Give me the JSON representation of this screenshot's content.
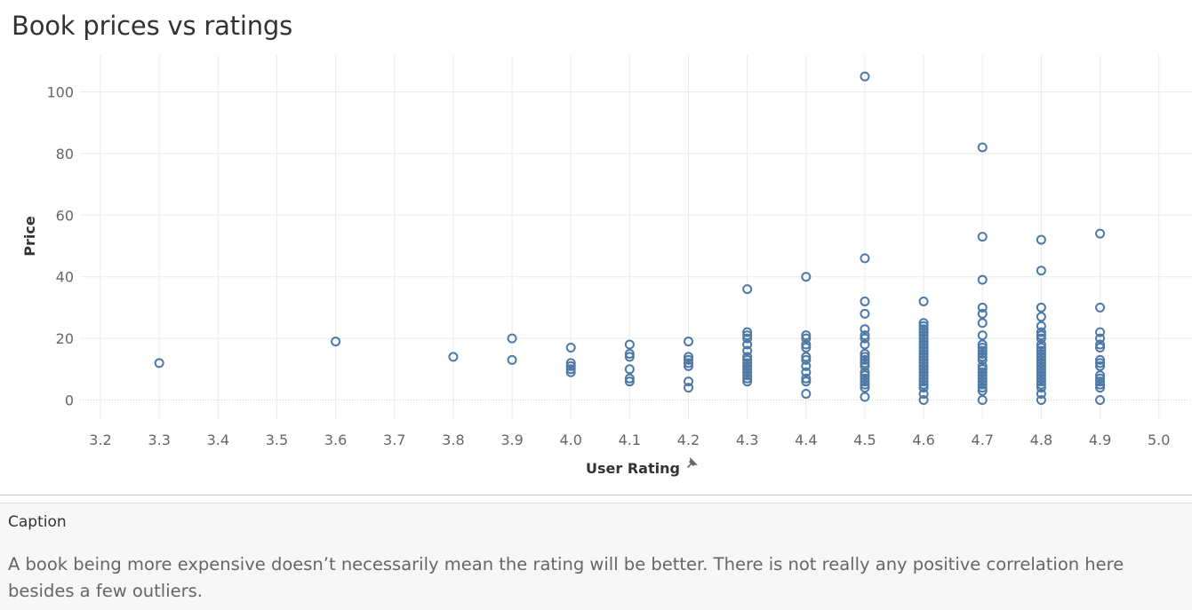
{
  "colors": {
    "point": "#4e79a7",
    "grid": "#ebebeb"
  },
  "caption": {
    "heading": "Caption",
    "text": "A book being more expensive doesn’t necessarily mean the rating will be better. There is not really any positive correlation here besides a few outliers."
  },
  "pin_icon": "pin-icon",
  "chart_data": {
    "type": "scatter",
    "title": "Book prices vs ratings",
    "xlabel": "User Rating",
    "ylabel": "Price",
    "xlim": [
      3.2,
      5.0
    ],
    "ylim": [
      0,
      100
    ],
    "xticks": [
      "3.2",
      "3.3",
      "3.4",
      "3.5",
      "3.6",
      "3.7",
      "3.8",
      "3.9",
      "4.0",
      "4.1",
      "4.2",
      "4.3",
      "4.4",
      "4.5",
      "4.6",
      "4.7",
      "4.8",
      "4.9",
      "5.0"
    ],
    "yticks": [
      "0",
      "20",
      "40",
      "60",
      "80",
      "100"
    ],
    "grid": true,
    "series": [
      {
        "points": [
          [
            3.3,
            12
          ],
          [
            3.6,
            19
          ],
          [
            3.8,
            14
          ],
          [
            3.9,
            20
          ],
          [
            3.9,
            13
          ],
          [
            4.0,
            17
          ],
          [
            4.0,
            12
          ],
          [
            4.0,
            11
          ],
          [
            4.0,
            10
          ],
          [
            4.0,
            9
          ],
          [
            4.1,
            18
          ],
          [
            4.1,
            15
          ],
          [
            4.1,
            14
          ],
          [
            4.1,
            10
          ],
          [
            4.1,
            7
          ],
          [
            4.1,
            6
          ],
          [
            4.2,
            19
          ],
          [
            4.2,
            14
          ],
          [
            4.2,
            13
          ],
          [
            4.2,
            12
          ],
          [
            4.2,
            11
          ],
          [
            4.2,
            6
          ],
          [
            4.2,
            4
          ],
          [
            4.3,
            36
          ],
          [
            4.3,
            22
          ],
          [
            4.3,
            21
          ],
          [
            4.3,
            20
          ],
          [
            4.3,
            18
          ],
          [
            4.3,
            16
          ],
          [
            4.3,
            14
          ],
          [
            4.3,
            13
          ],
          [
            4.3,
            12
          ],
          [
            4.3,
            11
          ],
          [
            4.3,
            10
          ],
          [
            4.3,
            9
          ],
          [
            4.3,
            8
          ],
          [
            4.3,
            7
          ],
          [
            4.3,
            6
          ],
          [
            4.4,
            40
          ],
          [
            4.4,
            21
          ],
          [
            4.4,
            20
          ],
          [
            4.4,
            18
          ],
          [
            4.4,
            17
          ],
          [
            4.4,
            14
          ],
          [
            4.4,
            13
          ],
          [
            4.4,
            11
          ],
          [
            4.4,
            9
          ],
          [
            4.4,
            7
          ],
          [
            4.4,
            6
          ],
          [
            4.4,
            2
          ],
          [
            4.5,
            105
          ],
          [
            4.5,
            46
          ],
          [
            4.5,
            32
          ],
          [
            4.5,
            28
          ],
          [
            4.5,
            23
          ],
          [
            4.5,
            21
          ],
          [
            4.5,
            20
          ],
          [
            4.5,
            18
          ],
          [
            4.5,
            15
          ],
          [
            4.5,
            14
          ],
          [
            4.5,
            13
          ],
          [
            4.5,
            12
          ],
          [
            4.5,
            11
          ],
          [
            4.5,
            9
          ],
          [
            4.5,
            8
          ],
          [
            4.5,
            7
          ],
          [
            4.5,
            6
          ],
          [
            4.5,
            5
          ],
          [
            4.5,
            4
          ],
          [
            4.5,
            1
          ],
          [
            4.6,
            32
          ],
          [
            4.6,
            25
          ],
          [
            4.6,
            24
          ],
          [
            4.6,
            23
          ],
          [
            4.6,
            22
          ],
          [
            4.6,
            21
          ],
          [
            4.6,
            20
          ],
          [
            4.6,
            19
          ],
          [
            4.6,
            18
          ],
          [
            4.6,
            17
          ],
          [
            4.6,
            16
          ],
          [
            4.6,
            15
          ],
          [
            4.6,
            14
          ],
          [
            4.6,
            13
          ],
          [
            4.6,
            12
          ],
          [
            4.6,
            11
          ],
          [
            4.6,
            10
          ],
          [
            4.6,
            9
          ],
          [
            4.6,
            8
          ],
          [
            4.6,
            7
          ],
          [
            4.6,
            6
          ],
          [
            4.6,
            5
          ],
          [
            4.6,
            4
          ],
          [
            4.6,
            2
          ],
          [
            4.6,
            0
          ],
          [
            4.7,
            82
          ],
          [
            4.7,
            53
          ],
          [
            4.7,
            39
          ],
          [
            4.7,
            30
          ],
          [
            4.7,
            28
          ],
          [
            4.7,
            25
          ],
          [
            4.7,
            21
          ],
          [
            4.7,
            18
          ],
          [
            4.7,
            17
          ],
          [
            4.7,
            16
          ],
          [
            4.7,
            15
          ],
          [
            4.7,
            14
          ],
          [
            4.7,
            13
          ],
          [
            4.7,
            11
          ],
          [
            4.7,
            10
          ],
          [
            4.7,
            9
          ],
          [
            4.7,
            8
          ],
          [
            4.7,
            7
          ],
          [
            4.7,
            6
          ],
          [
            4.7,
            5
          ],
          [
            4.7,
            4
          ],
          [
            4.7,
            3
          ],
          [
            4.7,
            0
          ],
          [
            4.8,
            52
          ],
          [
            4.8,
            42
          ],
          [
            4.8,
            30
          ],
          [
            4.8,
            27
          ],
          [
            4.8,
            24
          ],
          [
            4.8,
            22
          ],
          [
            4.8,
            21
          ],
          [
            4.8,
            20
          ],
          [
            4.8,
            18
          ],
          [
            4.8,
            17
          ],
          [
            4.8,
            16
          ],
          [
            4.8,
            15
          ],
          [
            4.8,
            14
          ],
          [
            4.8,
            13
          ],
          [
            4.8,
            12
          ],
          [
            4.8,
            11
          ],
          [
            4.8,
            10
          ],
          [
            4.8,
            9
          ],
          [
            4.8,
            8
          ],
          [
            4.8,
            7
          ],
          [
            4.8,
            6
          ],
          [
            4.8,
            5
          ],
          [
            4.8,
            4
          ],
          [
            4.8,
            2
          ],
          [
            4.8,
            0
          ],
          [
            4.9,
            54
          ],
          [
            4.9,
            30
          ],
          [
            4.9,
            22
          ],
          [
            4.9,
            20
          ],
          [
            4.9,
            18
          ],
          [
            4.9,
            17
          ],
          [
            4.9,
            13
          ],
          [
            4.9,
            12
          ],
          [
            4.9,
            11
          ],
          [
            4.9,
            8
          ],
          [
            4.9,
            7
          ],
          [
            4.9,
            6
          ],
          [
            4.9,
            5
          ],
          [
            4.9,
            4
          ],
          [
            4.9,
            0
          ]
        ]
      }
    ]
  }
}
